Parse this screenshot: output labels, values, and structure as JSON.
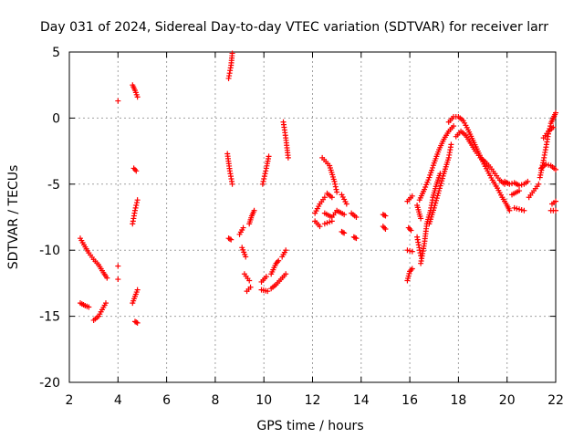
{
  "chart_data": {
    "type": "scatter",
    "title": "Day 031 of 2024, Sidereal Day-to-day VTEC variation (SDTVAR) for receiver larr",
    "xlabel": "GPS time / hours",
    "ylabel": "SDTVAR / TECUs",
    "xlim": [
      2,
      22
    ],
    "ylim": [
      -20,
      5
    ],
    "xticks": [
      2,
      4,
      6,
      8,
      10,
      12,
      14,
      16,
      18,
      20,
      22
    ],
    "yticks": [
      5,
      0,
      -5,
      -10,
      -15,
      -20
    ],
    "grid": true,
    "marker": "+",
    "color": "#ff0000",
    "series": [
      {
        "name": "SDTVAR",
        "segments": [
          [
            [
              2.45,
              -9.1
            ],
            [
              2.6,
              -9.6
            ],
            [
              2.8,
              -10.2
            ],
            [
              3.0,
              -10.7
            ],
            [
              3.2,
              -11.1
            ],
            [
              3.4,
              -11.7
            ],
            [
              3.55,
              -12.1
            ]
          ],
          [
            [
              2.45,
              -14.0
            ],
            [
              2.65,
              -14.2
            ],
            [
              2.8,
              -14.3
            ]
          ],
          [
            [
              3.0,
              -15.3
            ],
            [
              3.2,
              -15.0
            ],
            [
              3.35,
              -14.5
            ],
            [
              3.5,
              -14.0
            ]
          ],
          [
            [
              4.0,
              1.3
            ]
          ],
          [
            [
              4.0,
              -11.2
            ]
          ],
          [
            [
              4.0,
              -12.2
            ]
          ],
          [
            [
              4.6,
              2.5
            ],
            [
              4.7,
              2.1
            ],
            [
              4.8,
              1.6
            ]
          ],
          [
            [
              4.65,
              -3.8
            ],
            [
              4.75,
              -4.0
            ]
          ],
          [
            [
              4.6,
              -8.0
            ],
            [
              4.7,
              -7.0
            ],
            [
              4.8,
              -6.2
            ]
          ],
          [
            [
              4.6,
              -14.0
            ],
            [
              4.7,
              -13.5
            ],
            [
              4.8,
              -13.0
            ]
          ],
          [
            [
              4.7,
              -15.4
            ],
            [
              4.8,
              -15.5
            ]
          ],
          [
            [
              8.55,
              3.0
            ],
            [
              8.65,
              4.0
            ],
            [
              8.7,
              4.9
            ]
          ],
          [
            [
              8.5,
              -2.7
            ],
            [
              8.6,
              -4.0
            ],
            [
              8.7,
              -5.0
            ]
          ],
          [
            [
              8.55,
              -9.1
            ],
            [
              8.65,
              -9.2
            ]
          ],
          [
            [
              9.0,
              -8.8
            ],
            [
              9.15,
              -8.3
            ]
          ],
          [
            [
              9.1,
              -9.8
            ],
            [
              9.25,
              -10.5
            ]
          ],
          [
            [
              9.2,
              -11.8
            ],
            [
              9.4,
              -12.3
            ]
          ],
          [
            [
              9.3,
              -13.1
            ],
            [
              9.45,
              -12.8
            ]
          ],
          [
            [
              9.4,
              -8.0
            ],
            [
              9.5,
              -7.4
            ],
            [
              9.6,
              -7.0
            ]
          ],
          [
            [
              9.95,
              -5.0
            ],
            [
              10.1,
              -3.8
            ],
            [
              10.2,
              -2.9
            ]
          ],
          [
            [
              9.9,
              -12.4
            ],
            [
              10.1,
              -12.0
            ]
          ],
          [
            [
              9.9,
              -13.0
            ],
            [
              10.15,
              -13.1
            ]
          ],
          [
            [
              10.3,
              -11.8
            ],
            [
              10.5,
              -11.0
            ],
            [
              10.6,
              -10.8
            ]
          ],
          [
            [
              10.3,
              -12.9
            ],
            [
              10.5,
              -12.6
            ],
            [
              10.7,
              -12.2
            ],
            [
              10.9,
              -11.8
            ]
          ],
          [
            [
              10.75,
              -10.5
            ],
            [
              10.9,
              -10.0
            ]
          ],
          [
            [
              10.8,
              -0.3
            ],
            [
              10.9,
              -1.5
            ],
            [
              11.0,
              -3.0
            ]
          ],
          [
            [
              12.1,
              -7.2
            ],
            [
              12.3,
              -6.5
            ],
            [
              12.5,
              -6.0
            ]
          ],
          [
            [
              12.1,
              -7.8
            ],
            [
              12.3,
              -8.2
            ]
          ],
          [
            [
              12.4,
              -3.0
            ],
            [
              12.7,
              -3.6
            ],
            [
              12.9,
              -4.8
            ],
            [
              13.0,
              -5.6
            ]
          ],
          [
            [
              12.6,
              -5.7
            ],
            [
              12.8,
              -6.0
            ]
          ],
          [
            [
              12.5,
              -7.2
            ],
            [
              12.8,
              -7.5
            ],
            [
              13.0,
              -7.0
            ],
            [
              13.3,
              -7.3
            ]
          ],
          [
            [
              12.5,
              -8.0
            ],
            [
              12.8,
              -7.8
            ]
          ],
          [
            [
              13.2,
              -5.8
            ],
            [
              13.4,
              -6.5
            ]
          ],
          [
            [
              13.2,
              -8.6
            ],
            [
              13.3,
              -8.7
            ]
          ],
          [
            [
              13.6,
              -7.2
            ],
            [
              13.8,
              -7.5
            ]
          ],
          [
            [
              13.7,
              -9.0
            ],
            [
              13.8,
              -9.1
            ]
          ],
          [
            [
              14.9,
              -7.3
            ],
            [
              15.0,
              -7.4
            ]
          ],
          [
            [
              14.9,
              -8.2
            ],
            [
              15.0,
              -8.4
            ]
          ],
          [
            [
              15.9,
              -6.3
            ],
            [
              16.1,
              -5.9
            ]
          ],
          [
            [
              15.95,
              -8.3
            ],
            [
              16.05,
              -8.5
            ]
          ],
          [
            [
              15.9,
              -10.0
            ],
            [
              16.1,
              -10.1
            ]
          ],
          [
            [
              15.9,
              -12.3
            ],
            [
              16.0,
              -11.6
            ],
            [
              16.1,
              -11.4
            ]
          ],
          [
            [
              16.3,
              -6.6
            ],
            [
              16.45,
              -7.6
            ]
          ],
          [
            [
              16.3,
              -9.0
            ],
            [
              16.45,
              -10.4
            ]
          ],
          [
            [
              16.45,
              -11.0
            ],
            [
              16.6,
              -9.5
            ],
            [
              16.7,
              -8.0
            ],
            [
              16.85,
              -7.0
            ],
            [
              16.95,
              -6.0
            ],
            [
              17.1,
              -5.0
            ],
            [
              17.25,
              -4.2
            ]
          ],
          [
            [
              16.4,
              -6.2
            ],
            [
              16.6,
              -5.4
            ],
            [
              16.8,
              -4.5
            ],
            [
              17.0,
              -3.4
            ],
            [
              17.2,
              -2.4
            ],
            [
              17.4,
              -1.6
            ],
            [
              17.6,
              -1.0
            ],
            [
              17.8,
              -0.6
            ]
          ],
          [
            [
              16.8,
              -8.0
            ],
            [
              17.0,
              -6.8
            ],
            [
              17.2,
              -5.5
            ],
            [
              17.4,
              -4.2
            ],
            [
              17.6,
              -3.0
            ],
            [
              17.7,
              -2.0
            ]
          ],
          [
            [
              17.9,
              -1.4
            ],
            [
              18.1,
              -1.0
            ],
            [
              18.3,
              -1.3
            ],
            [
              18.5,
              -1.9
            ],
            [
              18.7,
              -2.5
            ],
            [
              18.9,
              -3.0
            ],
            [
              19.1,
              -3.3
            ],
            [
              19.3,
              -3.7
            ],
            [
              19.5,
              -4.2
            ],
            [
              19.7,
              -4.7
            ],
            [
              19.9,
              -5.0
            ]
          ],
          [
            [
              17.6,
              -0.3
            ],
            [
              17.8,
              0.1
            ],
            [
              18.0,
              0.1
            ],
            [
              18.2,
              -0.2
            ],
            [
              18.4,
              -0.9
            ],
            [
              18.6,
              -1.7
            ],
            [
              18.8,
              -2.5
            ],
            [
              19.0,
              -3.3
            ],
            [
              19.2,
              -4.0
            ],
            [
              19.4,
              -4.7
            ],
            [
              19.6,
              -5.3
            ],
            [
              19.8,
              -6.0
            ],
            [
              20.0,
              -6.6
            ],
            [
              20.1,
              -7.0
            ]
          ],
          [
            [
              19.9,
              -4.8
            ],
            [
              20.1,
              -5.0
            ],
            [
              20.3,
              -4.9
            ],
            [
              20.5,
              -5.1
            ],
            [
              20.7,
              -5.0
            ],
            [
              20.85,
              -4.8
            ]
          ],
          [
            [
              20.3,
              -6.8
            ],
            [
              20.5,
              -6.9
            ],
            [
              20.7,
              -7.0
            ]
          ],
          [
            [
              20.2,
              -5.8
            ],
            [
              20.5,
              -5.5
            ]
          ],
          [
            [
              20.9,
              -6.0
            ],
            [
              21.1,
              -5.5
            ],
            [
              21.3,
              -5.0
            ]
          ],
          [
            [
              21.35,
              -4.5
            ],
            [
              21.5,
              -3.2
            ],
            [
              21.6,
              -2.2
            ],
            [
              21.7,
              -1.2
            ],
            [
              21.8,
              -0.4
            ],
            [
              21.9,
              0.0
            ],
            [
              22.0,
              0.4
            ]
          ],
          [
            [
              21.4,
              -3.8
            ],
            [
              21.6,
              -3.5
            ],
            [
              21.8,
              -3.6
            ],
            [
              22.0,
              -3.9
            ]
          ],
          [
            [
              21.8,
              -7.0
            ],
            [
              22.0,
              -7.0
            ]
          ],
          [
            [
              21.85,
              -6.5
            ],
            [
              22.0,
              -6.3
            ]
          ],
          [
            [
              21.5,
              -1.5
            ],
            [
              21.7,
              -1.0
            ],
            [
              21.9,
              -0.7
            ]
          ]
        ]
      }
    ]
  }
}
